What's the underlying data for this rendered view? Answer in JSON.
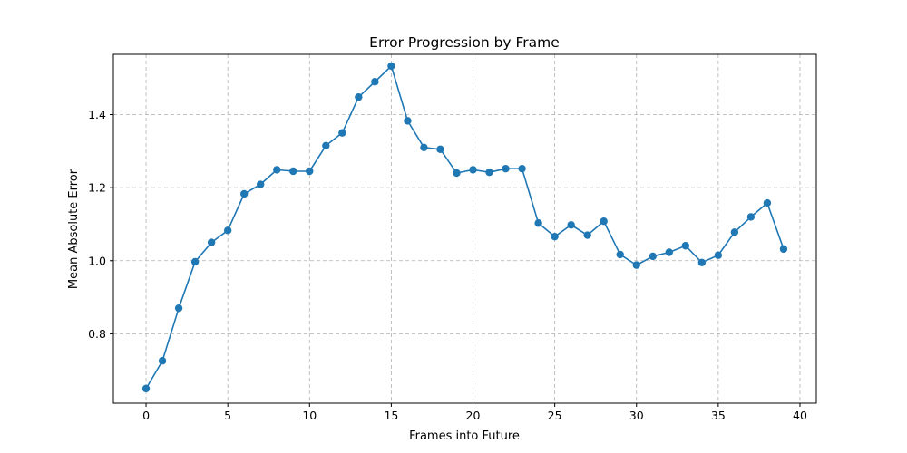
{
  "chart_data": {
    "type": "line",
    "title": "Error Progression by Frame",
    "xlabel": "Frames into Future",
    "ylabel": "Mean Absolute Error",
    "xlim": [
      -2,
      41
    ],
    "ylim": [
      0.61,
      1.565
    ],
    "xticks": [
      0,
      5,
      10,
      15,
      20,
      25,
      30,
      35,
      40
    ],
    "yticks": [
      0.8,
      1.0,
      1.2,
      1.4
    ],
    "xtick_labels": [
      "0",
      "5",
      "10",
      "15",
      "20",
      "25",
      "30",
      "35",
      "40"
    ],
    "ytick_labels": [
      "0.8",
      "1.0",
      "1.2",
      "1.4"
    ],
    "grid": true,
    "grid_style": "dashed",
    "marker": "circle",
    "color": "#1f77b4",
    "series": [
      {
        "x": [
          0,
          1,
          2,
          3,
          4,
          5,
          6,
          7,
          8,
          9,
          10,
          11,
          12,
          13,
          14,
          15,
          16,
          17,
          18,
          19,
          20,
          21,
          22,
          23,
          24,
          25,
          26,
          27,
          28,
          29,
          30,
          31,
          32,
          33,
          34,
          35,
          36,
          37,
          38,
          39
        ],
        "values": [
          0.65,
          0.726,
          0.87,
          0.997,
          1.05,
          1.083,
          1.183,
          1.209,
          1.249,
          1.245,
          1.245,
          1.315,
          1.35,
          1.448,
          1.49,
          1.533,
          1.383,
          1.31,
          1.305,
          1.24,
          1.249,
          1.242,
          1.252,
          1.252,
          1.103,
          1.066,
          1.098,
          1.07,
          1.108,
          1.017,
          0.988,
          1.012,
          1.023,
          1.041,
          0.995,
          1.015,
          1.078,
          1.12,
          1.158,
          1.032
        ]
      }
    ]
  }
}
